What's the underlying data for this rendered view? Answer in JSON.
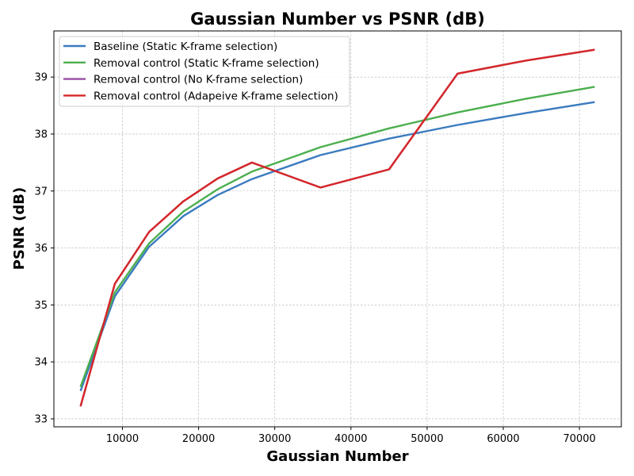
{
  "chart_data": {
    "type": "line",
    "title": "Gaussian Number vs PSNR (dB)",
    "xlabel": "Gaussian Number",
    "ylabel": "PSNR (dB)",
    "xlim": [
      1000,
      75500
    ],
    "ylim": [
      32.86,
      39.81
    ],
    "xticks": [
      10000,
      20000,
      30000,
      40000,
      50000,
      60000,
      70000
    ],
    "yticks": [
      33,
      34,
      35,
      36,
      37,
      38,
      39
    ],
    "grid": true,
    "legend_position": "top-left",
    "x": [
      4500,
      9000,
      13500,
      18000,
      22500,
      27000,
      36000,
      45000,
      54000,
      63000,
      72000
    ],
    "series": [
      {
        "name": "Baseline (Static K-frame selection)",
        "color": "#3a7bbf",
        "values": [
          33.49,
          35.15,
          36.02,
          36.56,
          36.93,
          37.21,
          37.63,
          37.92,
          38.16,
          38.37,
          38.56
        ]
      },
      {
        "name": "Removal control (Static K-frame selection)",
        "color": "#4caf4f",
        "values": [
          33.56,
          35.22,
          36.08,
          36.64,
          37.03,
          37.34,
          37.77,
          38.1,
          38.38,
          38.62,
          38.83
        ]
      },
      {
        "name": "Removal control (No K-frame selection)",
        "color": "#984ea3",
        "values": [
          33.22,
          35.37,
          36.28,
          36.82,
          37.22,
          37.5,
          37.06,
          37.38,
          39.06,
          39.29,
          39.48
        ]
      },
      {
        "name": "Removal control (Adapeive K-frame selection)",
        "color": "#d62728",
        "values": [
          33.22,
          35.37,
          36.28,
          36.82,
          37.22,
          37.5,
          37.06,
          37.38,
          39.06,
          39.29,
          39.48
        ]
      }
    ]
  }
}
